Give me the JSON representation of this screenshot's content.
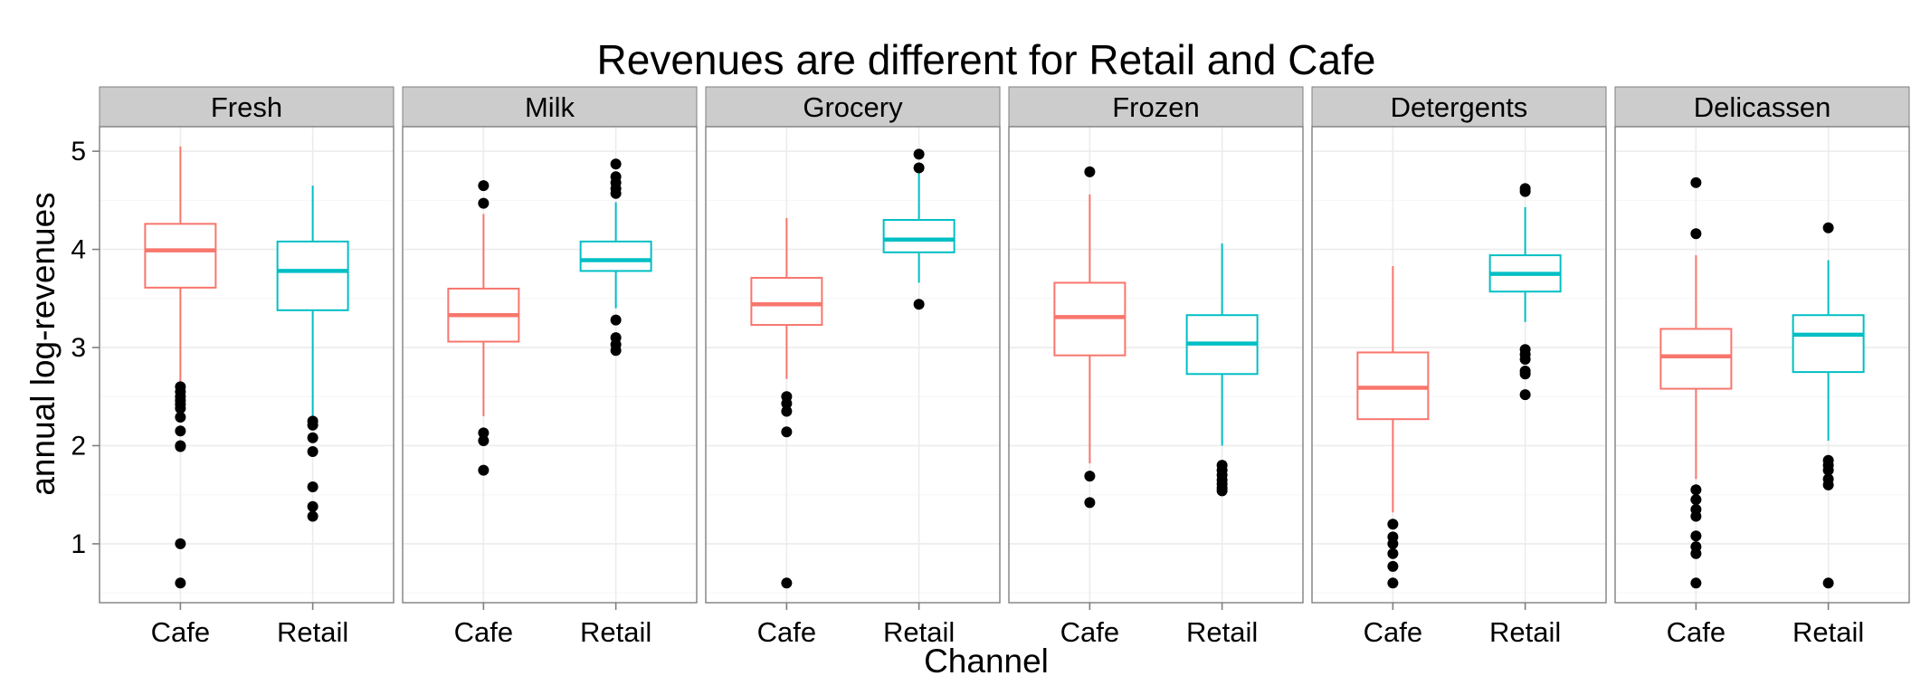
{
  "chart_data": {
    "type": "boxplot",
    "title": "Revenues are different for Retail and Cafe",
    "xlabel": "Channel",
    "ylabel": "annual log-revenues",
    "categories": [
      "Cafe",
      "Retail"
    ],
    "ylim": [
      0.4,
      5.25
    ],
    "yticks": [
      1,
      2,
      3,
      4,
      5
    ],
    "grid": true,
    "legend": "none",
    "colors": {
      "Cafe": "#F8766D",
      "Retail": "#00BFC4",
      "outlier": "#000000"
    },
    "facets": [
      {
        "name": "Fresh",
        "boxes": [
          {
            "category": "Cafe",
            "whisker_low": 2.62,
            "q1": 3.61,
            "median": 3.99,
            "q3": 4.26,
            "whisker_high": 5.05,
            "outliers": [
              0.6,
              1.0,
              1.99,
              2.0,
              2.15,
              2.29,
              2.38,
              2.42,
              2.46,
              2.5,
              2.55,
              2.6
            ]
          },
          {
            "category": "Retail",
            "whisker_low": 2.26,
            "q1": 3.38,
            "median": 3.78,
            "q3": 4.08,
            "whisker_high": 4.65,
            "outliers": [
              1.28,
              1.38,
              1.58,
              1.94,
              2.08,
              2.21,
              2.25
            ]
          }
        ]
      },
      {
        "name": "Milk",
        "boxes": [
          {
            "category": "Cafe",
            "whisker_low": 2.3,
            "q1": 3.06,
            "median": 3.33,
            "q3": 3.6,
            "whisker_high": 4.36,
            "outliers": [
              1.75,
              2.05,
              2.13,
              4.47,
              4.65
            ]
          },
          {
            "category": "Retail",
            "whisker_low": 3.4,
            "q1": 3.78,
            "median": 3.89,
            "q3": 4.08,
            "whisker_high": 4.48,
            "outliers": [
              2.97,
              3.03,
              3.1,
              3.28,
              4.57,
              4.62,
              4.68,
              4.74,
              4.87
            ]
          }
        ]
      },
      {
        "name": "Grocery",
        "boxes": [
          {
            "category": "Cafe",
            "whisker_low": 2.68,
            "q1": 3.23,
            "median": 3.44,
            "q3": 3.71,
            "whisker_high": 4.32,
            "outliers": [
              0.6,
              2.14,
              2.35,
              2.43,
              2.5
            ]
          },
          {
            "category": "Retail",
            "whisker_low": 3.66,
            "q1": 3.97,
            "median": 4.1,
            "q3": 4.3,
            "whisker_high": 4.79,
            "outliers": [
              3.44,
              4.83,
              4.97
            ]
          }
        ]
      },
      {
        "name": "Frozen",
        "boxes": [
          {
            "category": "Cafe",
            "whisker_low": 1.82,
            "q1": 2.92,
            "median": 3.31,
            "q3": 3.66,
            "whisker_high": 4.56,
            "outliers": [
              1.42,
              1.69,
              4.79
            ]
          },
          {
            "category": "Retail",
            "whisker_low": 2.0,
            "q1": 2.73,
            "median": 3.04,
            "q3": 3.33,
            "whisker_high": 4.06,
            "outliers": [
              1.54,
              1.57,
              1.61,
              1.65,
              1.7,
              1.75,
              1.8
            ]
          }
        ]
      },
      {
        "name": "Detergents",
        "boxes": [
          {
            "category": "Cafe",
            "whisker_low": 1.32,
            "q1": 2.27,
            "median": 2.59,
            "q3": 2.95,
            "whisker_high": 3.83,
            "outliers": [
              0.6,
              0.77,
              0.9,
              1.0,
              1.07,
              1.2
            ]
          },
          {
            "category": "Retail",
            "whisker_low": 3.26,
            "q1": 3.57,
            "median": 3.75,
            "q3": 3.94,
            "whisker_high": 4.43,
            "outliers": [
              2.52,
              2.73,
              2.76,
              2.88,
              2.93,
              2.98,
              4.59,
              4.62
            ]
          }
        ]
      },
      {
        "name": "Delicassen",
        "boxes": [
          {
            "category": "Cafe",
            "whisker_low": 1.66,
            "q1": 2.58,
            "median": 2.91,
            "q3": 3.19,
            "whisker_high": 3.94,
            "outliers": [
              0.6,
              0.9,
              0.97,
              1.08,
              1.28,
              1.35,
              1.45,
              1.55,
              4.16,
              4.68
            ]
          },
          {
            "category": "Retail",
            "whisker_low": 2.05,
            "q1": 2.75,
            "median": 3.13,
            "q3": 3.33,
            "whisker_high": 3.89,
            "outliers": [
              0.6,
              1.6,
              1.66,
              1.75,
              1.8,
              1.85,
              4.22
            ]
          }
        ]
      }
    ]
  }
}
